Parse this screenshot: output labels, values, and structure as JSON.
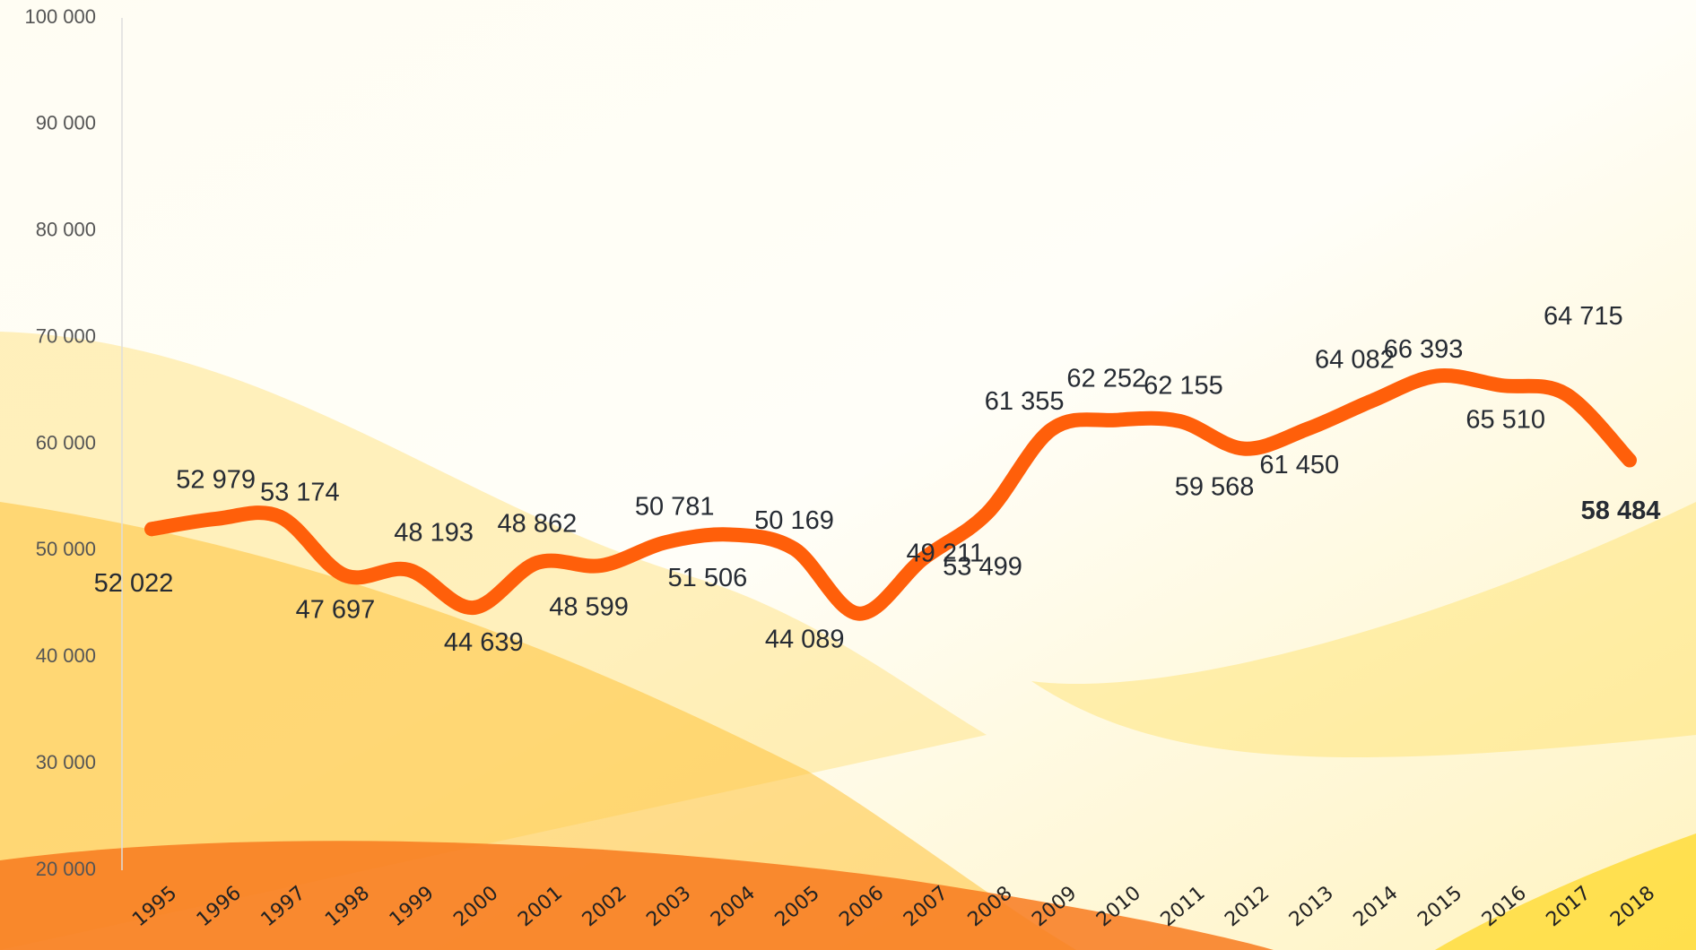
{
  "chart_data": {
    "type": "line",
    "categories": [
      "1995",
      "1996",
      "1997",
      "1998",
      "1999",
      "2000",
      "2001",
      "2002",
      "2003",
      "2004",
      "2005",
      "2006",
      "2007",
      "2008",
      "2009",
      "2010",
      "2011",
      "2012",
      "2013",
      "2014",
      "2015",
      "2016",
      "2017",
      "2018"
    ],
    "series": [
      {
        "name": null,
        "color": "#ff5f0a",
        "values": [
          52022,
          52979,
          53174,
          47697,
          48193,
          44639,
          48862,
          48599,
          50781,
          51506,
          50169,
          44089,
          49211,
          53499,
          61355,
          62252,
          62155,
          59568,
          61450,
          64082,
          66393,
          65510,
          64715,
          58484
        ],
        "value_labels": [
          "52 022",
          "52 979",
          "53 174",
          "47 697",
          "48 193",
          "44 639",
          "48 862",
          "48 599",
          "50 781",
          "51 506",
          "50 169",
          "44 089",
          "49 211",
          "53 499",
          "61 355",
          "62 252",
          "62 155",
          "59 568",
          "61 450",
          "64 082",
          "66 393",
          "65 510",
          "64 715",
          "58 484"
        ]
      }
    ],
    "ylim": [
      20000,
      100000
    ],
    "yticks": [
      {
        "value": 20000,
        "label": "20 000"
      },
      {
        "value": 30000,
        "label": "30 000"
      },
      {
        "value": 40000,
        "label": "40 000"
      },
      {
        "value": 50000,
        "label": "50 000"
      },
      {
        "value": 60000,
        "label": "60 000"
      },
      {
        "value": 70000,
        "label": "70 000"
      },
      {
        "value": 80000,
        "label": "80 000"
      },
      {
        "value": 90000,
        "label": "90 000"
      },
      {
        "value": 100000,
        "label": "100 000"
      }
    ]
  }
}
